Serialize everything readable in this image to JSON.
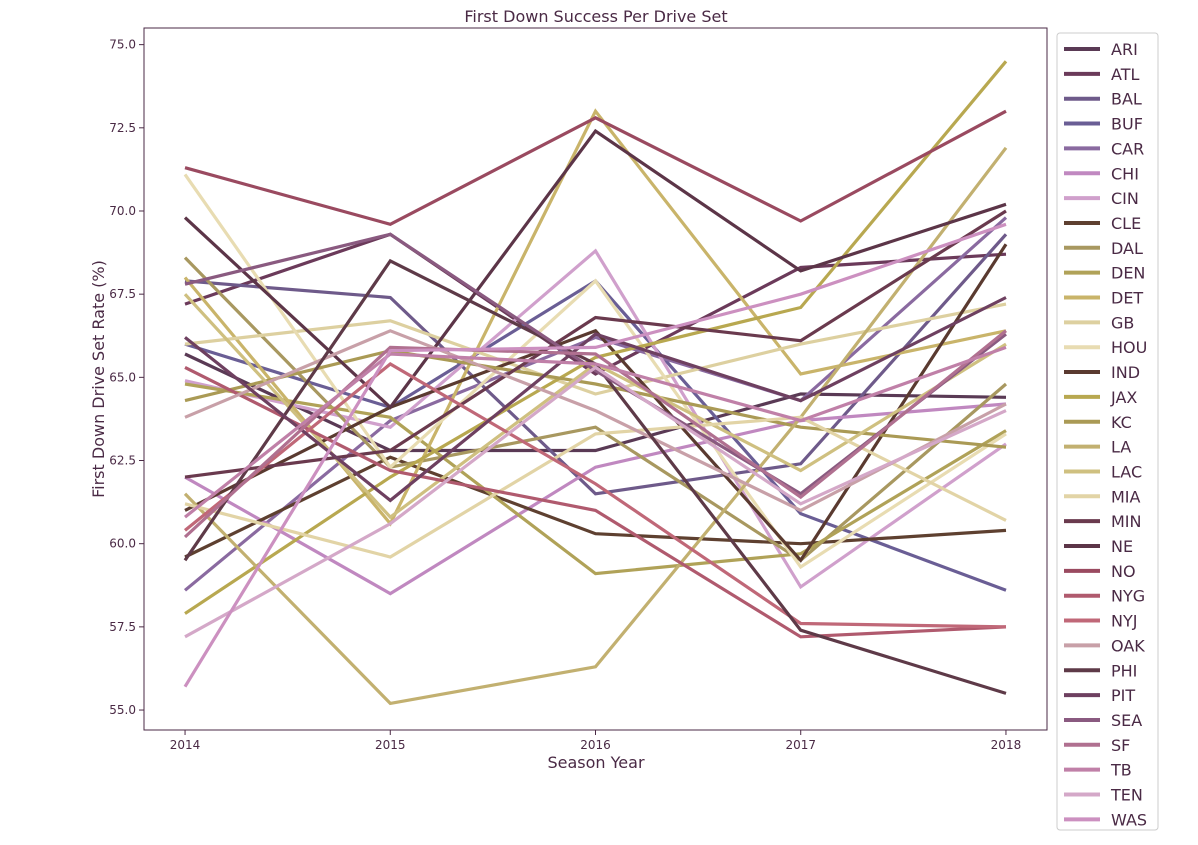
{
  "chart_data": {
    "type": "line",
    "title": "First Down Success Per Drive Set",
    "xlabel": "Season Year",
    "ylabel": "First Down Drive Set Rate (%)",
    "x": [
      2014,
      2015,
      2016,
      2017,
      2018
    ],
    "x_ticks": [
      "2014",
      "2015",
      "2016",
      "2017",
      "2018"
    ],
    "xlim": [
      2013.8,
      2018.2
    ],
    "ylim": [
      54.4,
      75.5
    ],
    "y_ticks": [
      "55.0",
      "57.5",
      "60.0",
      "62.5",
      "65.0",
      "67.5",
      "70.0",
      "72.5",
      "75.0"
    ],
    "legend_position": "outside-right",
    "series": [
      {
        "name": "ARI",
        "color": "#5a3a55",
        "values": [
          65.7,
          62.8,
          62.8,
          64.5,
          64.4
        ]
      },
      {
        "name": "ATL",
        "color": "#6b3a5a",
        "values": [
          67.2,
          69.3,
          65.1,
          68.3,
          68.7
        ]
      },
      {
        "name": "BAL",
        "color": "#6e5a8a",
        "values": [
          67.9,
          67.4,
          61.5,
          62.4,
          69.3
        ]
      },
      {
        "name": "BUF",
        "color": "#6a5e95",
        "values": [
          66.0,
          64.1,
          67.9,
          60.9,
          58.6
        ]
      },
      {
        "name": "CAR",
        "color": "#8a6aa0",
        "values": [
          58.6,
          63.7,
          66.2,
          64.3,
          69.8
        ]
      },
      {
        "name": "CHI",
        "color": "#c088c0",
        "values": [
          62.0,
          58.5,
          62.3,
          63.7,
          64.2
        ]
      },
      {
        "name": "CIN",
        "color": "#d0a0cc",
        "values": [
          64.9,
          63.5,
          68.8,
          58.7,
          63.0
        ]
      },
      {
        "name": "CLE",
        "color": "#5e4030",
        "values": [
          59.6,
          62.6,
          60.3,
          60.0,
          60.4
        ]
      },
      {
        "name": "DAL",
        "color": "#a89860",
        "values": [
          68.6,
          62.3,
          63.5,
          59.5,
          64.8
        ]
      },
      {
        "name": "DEN",
        "color": "#b0a258",
        "values": [
          64.8,
          63.8,
          59.1,
          59.7,
          63.4
        ]
      },
      {
        "name": "DET",
        "color": "#c9b46a",
        "values": [
          68.0,
          60.6,
          73.0,
          65.1,
          66.4
        ]
      },
      {
        "name": "GB",
        "color": "#ddd0a0",
        "values": [
          66.0,
          66.7,
          64.5,
          66.0,
          67.2
        ]
      },
      {
        "name": "HOU",
        "color": "#e8dcb2",
        "values": [
          71.1,
          62.3,
          67.9,
          59.3,
          63.3
        ]
      },
      {
        "name": "IND",
        "color": "#5a3a30",
        "values": [
          61.0,
          64.1,
          66.4,
          59.5,
          69.0
        ]
      },
      {
        "name": "JAX",
        "color": "#b8a850",
        "values": [
          57.9,
          62.0,
          65.6,
          67.1,
          74.5
        ]
      },
      {
        "name": "KC",
        "color": "#aa9a55",
        "values": [
          64.3,
          65.8,
          64.8,
          63.5,
          62.9
        ]
      },
      {
        "name": "LA",
        "color": "#c2b070",
        "values": [
          61.5,
          55.2,
          56.3,
          63.8,
          71.9
        ]
      },
      {
        "name": "LAC",
        "color": "#cfc080",
        "values": [
          67.5,
          60.8,
          65.4,
          62.2,
          66.0
        ]
      },
      {
        "name": "MIA",
        "color": "#e2d4a6",
        "values": [
          61.2,
          59.6,
          63.3,
          63.8,
          60.7
        ]
      },
      {
        "name": "MIN",
        "color": "#6a3a4e",
        "values": [
          62.0,
          62.8,
          66.8,
          66.1,
          70.0
        ]
      },
      {
        "name": "NE",
        "color": "#5c3548",
        "values": [
          69.8,
          64.1,
          72.4,
          68.2,
          70.2
        ]
      },
      {
        "name": "NO",
        "color": "#9a4a60",
        "values": [
          71.3,
          69.6,
          72.8,
          69.7,
          73.0
        ]
      },
      {
        "name": "NYG",
        "color": "#b05a6e",
        "values": [
          65.3,
          62.2,
          61.0,
          57.2,
          57.5
        ]
      },
      {
        "name": "NYJ",
        "color": "#c06878",
        "values": [
          60.4,
          65.4,
          61.8,
          57.6,
          57.5
        ]
      },
      {
        "name": "OAK",
        "color": "#c8a0a8",
        "values": [
          63.8,
          66.4,
          64.0,
          61.0,
          64.2
        ]
      },
      {
        "name": "PHI",
        "color": "#5e3a48",
        "values": [
          59.5,
          68.5,
          65.4,
          57.4,
          55.5
        ]
      },
      {
        "name": "PIT",
        "color": "#6e4060",
        "values": [
          66.2,
          61.3,
          66.3,
          64.3,
          67.4
        ]
      },
      {
        "name": "SEA",
        "color": "#8a5a80",
        "values": [
          67.8,
          69.3,
          65.2,
          61.5,
          66.3
        ]
      },
      {
        "name": "SF",
        "color": "#b07090",
        "values": [
          60.2,
          65.9,
          65.7,
          61.4,
          66.4
        ]
      },
      {
        "name": "TB",
        "color": "#c080a8",
        "values": [
          60.8,
          65.7,
          65.4,
          63.7,
          65.9
        ]
      },
      {
        "name": "TEN",
        "color": "#d4a8c8",
        "values": [
          57.2,
          60.6,
          65.3,
          61.2,
          64.0
        ]
      },
      {
        "name": "WAS",
        "color": "#cc90c0",
        "values": [
          55.7,
          65.8,
          65.9,
          67.5,
          69.6
        ]
      }
    ]
  }
}
